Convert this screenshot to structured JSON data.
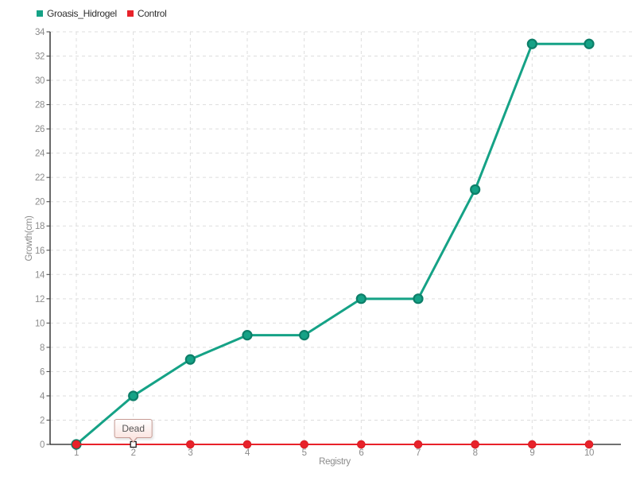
{
  "chart_data": {
    "type": "line",
    "title": "",
    "xlabel": "Registry",
    "ylabel": "Growth(cm)",
    "x": [
      1,
      2,
      3,
      4,
      5,
      6,
      7,
      8,
      9,
      10
    ],
    "xlim": [
      1,
      10
    ],
    "ylim": [
      0,
      34
    ],
    "ytick_step": 2,
    "grid": true,
    "legend_position": "top-left",
    "series": [
      {
        "name": "Groasis_Hidrogel",
        "color": "#15a286",
        "marker_stroke": "#0d7f69",
        "line_width": 3,
        "marker_radius": 5.5,
        "values": [
          0,
          4,
          7,
          9,
          9,
          12,
          12,
          21,
          33,
          33
        ]
      },
      {
        "name": "Control",
        "color": "#e8222a",
        "marker_stroke": "#d81f26",
        "line_width": 2,
        "marker_radius": 4.8,
        "values": [
          0,
          0,
          0,
          0,
          0,
          0,
          0,
          0,
          0,
          0
        ]
      }
    ],
    "annotation": {
      "text": "Dead",
      "series": "Control",
      "x": 2,
      "y": 0
    }
  },
  "colors": {
    "background": "#ffffff",
    "grid": "#dddddd",
    "axis": "#1a1a1a",
    "tick_label": "#8c8c8c",
    "axis_title": "#8c8c8c",
    "legend_text": "#2e2e2e",
    "tooltip_border": "#c79b94",
    "tooltip_bg_top": "#ffffff",
    "tooltip_bg_bottom": "#fbe6e2",
    "tooltip_text": "#555555"
  }
}
